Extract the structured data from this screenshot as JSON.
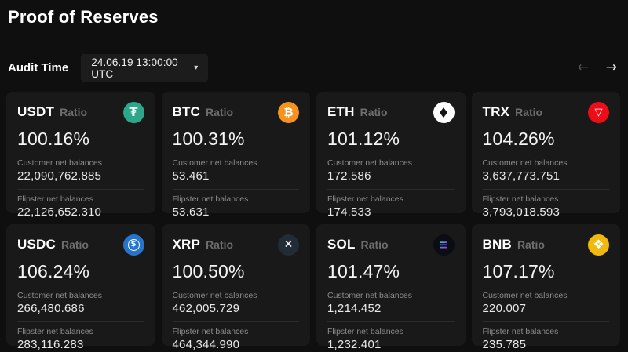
{
  "page": {
    "title": "Proof of Reserves"
  },
  "audit": {
    "label": "Audit Time",
    "selected_time": "24.06.19 13:00:00 UTC",
    "caret_glyph": "▾",
    "prev_arrow_glyph": "←",
    "next_arrow_glyph": "→"
  },
  "labels": {
    "ratio": "Ratio",
    "customer": "Customer net balances",
    "flipster": "Flipster net balances"
  },
  "colors": {
    "page_bg": "#0f0f0f",
    "card_bg": "#191919",
    "tether": "#2BA88A",
    "bitcoin": "#F7931A",
    "ethereum": "#FFFFFF",
    "tron": "#EB0E19",
    "usd_coin": "#2775CA",
    "xrp": "#222C36",
    "solana": "#0B0D12",
    "bnb": "#F0B90B"
  },
  "cards": [
    {
      "symbol": "USDT",
      "ratio": "100.16%",
      "customer_net_balance": "22,090,762.885",
      "flipster_net_balance": "22,126,652.310",
      "icon": {
        "name": "tether",
        "glyph": "₮",
        "bg": "#2BA88A",
        "fg": "#ffffff"
      }
    },
    {
      "symbol": "BTC",
      "ratio": "100.31%",
      "customer_net_balance": "53.461",
      "flipster_net_balance": "53.631",
      "icon": {
        "name": "bitcoin",
        "glyph": "₿",
        "bg": "#F7931A",
        "fg": "#ffffff"
      }
    },
    {
      "symbol": "ETH",
      "ratio": "101.12%",
      "customer_net_balance": "172.586",
      "flipster_net_balance": "174.533",
      "icon": {
        "name": "ethereum",
        "glyph": "◆",
        "bg": "#FFFFFF",
        "fg": "#151515"
      }
    },
    {
      "symbol": "TRX",
      "ratio": "104.26%",
      "customer_net_balance": "3,637,773.751",
      "flipster_net_balance": "3,793,018.593",
      "icon": {
        "name": "tron",
        "glyph": "▽",
        "bg": "#EB0E19",
        "fg": "#ffffff"
      }
    },
    {
      "symbol": "USDC",
      "ratio": "106.24%",
      "customer_net_balance": "266,480.686",
      "flipster_net_balance": "283,116.283",
      "icon": {
        "name": "usd-coin",
        "glyph": "$",
        "bg": "#2775CA",
        "fg": "#ffffff"
      }
    },
    {
      "symbol": "XRP",
      "ratio": "100.50%",
      "customer_net_balance": "462,005.729",
      "flipster_net_balance": "464,344.990",
      "icon": {
        "name": "xrp",
        "glyph": "✕",
        "bg": "#222C36",
        "fg": "#ffffff"
      }
    },
    {
      "symbol": "SOL",
      "ratio": "101.47%",
      "customer_net_balance": "1,214.452",
      "flipster_net_balance": "1,232.401",
      "icon": {
        "name": "solana",
        "glyph": "≡",
        "bg": "#0B0D12",
        "fg": "#ffffff"
      }
    },
    {
      "symbol": "BNB",
      "ratio": "107.17%",
      "customer_net_balance": "220.007",
      "flipster_net_balance": "235.785",
      "icon": {
        "name": "bnb",
        "glyph": "❖",
        "bg": "#F0B90B",
        "fg": "#ffffff"
      }
    }
  ]
}
